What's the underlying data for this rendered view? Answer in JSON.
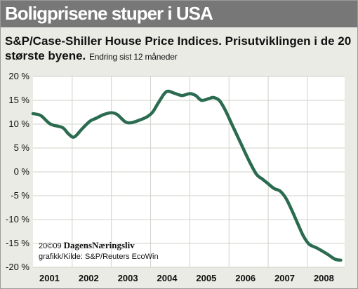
{
  "header": {
    "title": "Boligprisene stuper i USA",
    "subtitle": "S&P/Case-Shiller House Price Indices. Prisutviklingen i de 20 største byene.",
    "subtitle_note": "Endring sist 12 måneder"
  },
  "credit": {
    "copyright": "20©09",
    "brand": "DagensNæringsliv",
    "source": "grafikk/Kilde: S&P/Reuters EcoWin"
  },
  "colors": {
    "line": "#2b6b4f",
    "title_bar": "#777777",
    "background": "#e9ebe4",
    "plot_background": "#ffffff",
    "grid": "#cfd3c9"
  },
  "chart_data": {
    "type": "line",
    "xlabel": "",
    "ylabel": "",
    "xlim": [
      2001.0,
      2008.95
    ],
    "ylim": [
      -20,
      20
    ],
    "grid": true,
    "x_tick_labels": [
      "2001",
      "2002",
      "2003",
      "2004",
      "2005",
      "2006",
      "2007",
      "2008"
    ],
    "y_tick_values": [
      20,
      15,
      10,
      5,
      0,
      -5,
      -10,
      -15,
      -20
    ],
    "y_tick_labels": [
      "20 %",
      "15 %",
      "10 %",
      "5 %",
      "0 %",
      "-5 %",
      "-10 %",
      "-15 %",
      "-20 %"
    ],
    "series": [
      {
        "x": [
          2001.0,
          2001.2,
          2001.45,
          2001.75,
          2001.9,
          2002.05,
          2002.25,
          2002.45,
          2002.6,
          2002.8,
          2003.0,
          2003.15,
          2003.35,
          2003.5,
          2003.7,
          2003.9,
          2004.05,
          2004.2,
          2004.4,
          2004.6,
          2004.8,
          2005.0,
          2005.15,
          2005.3,
          2005.5,
          2005.6,
          2005.75,
          2005.9,
          2006.1,
          2006.3,
          2006.5,
          2006.7,
          2006.85,
          2007.0,
          2007.15,
          2007.3,
          2007.45,
          2007.6,
          2007.75,
          2007.9,
          2008.05,
          2008.25,
          2008.5,
          2008.7,
          2008.85
        ],
        "y": [
          12.2,
          11.8,
          10.0,
          9.3,
          8.0,
          7.3,
          9.0,
          10.6,
          11.2,
          12.0,
          12.4,
          12.0,
          10.5,
          10.3,
          10.8,
          11.5,
          12.5,
          14.5,
          16.8,
          16.5,
          16.0,
          16.4,
          16.0,
          15.0,
          15.4,
          15.6,
          15.0,
          13.0,
          9.5,
          6.0,
          2.5,
          -0.5,
          -1.5,
          -2.5,
          -3.5,
          -4.0,
          -5.5,
          -8.0,
          -10.8,
          -13.5,
          -15.2,
          -16.0,
          -17.2,
          -18.3,
          -18.5
        ]
      }
    ]
  }
}
